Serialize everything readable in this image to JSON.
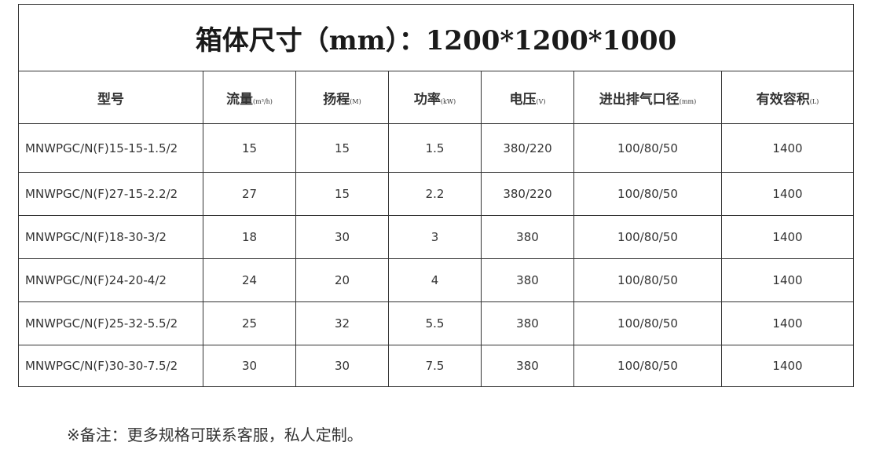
{
  "title": "箱体尺寸（mm）：1200*1200*1000",
  "columns": [
    {
      "label": "型号",
      "unit": ""
    },
    {
      "label": "流量",
      "unit": "(m³/h)"
    },
    {
      "label": "扬程",
      "unit": "(M)"
    },
    {
      "label": "功率",
      "unit": "(kW)"
    },
    {
      "label": "电压",
      "unit": "(V)"
    },
    {
      "label": "进出排气口径",
      "unit": "(mm)"
    },
    {
      "label": "有效容积",
      "unit": "(L)"
    }
  ],
  "rows": [
    [
      "MNWPGC/N(F)15-15-1.5/2",
      "15",
      "15",
      "1.5",
      "380/220",
      "100/80/50",
      "1400"
    ],
    [
      "MNWPGC/N(F)27-15-2.2/2",
      "27",
      "15",
      "2.2",
      "380/220",
      "100/80/50",
      "1400"
    ],
    [
      "MNWPGC/N(F)18-30-3/2",
      "18",
      "30",
      "3",
      "380",
      "100/80/50",
      "1400"
    ],
    [
      "MNWPGC/N(F)24-20-4/2",
      "24",
      "20",
      "4",
      "380",
      "100/80/50",
      "1400"
    ],
    [
      "MNWPGC/N(F)25-32-5.5/2",
      "25",
      "32",
      "5.5",
      "380",
      "100/80/50",
      "1400"
    ],
    [
      "MNWPGC/N(F)30-30-7.5/2",
      "30",
      "30",
      "7.5",
      "380",
      "100/80/50",
      "1400"
    ]
  ],
  "note": "※备注：更多规格可联系客服，私人定制。"
}
